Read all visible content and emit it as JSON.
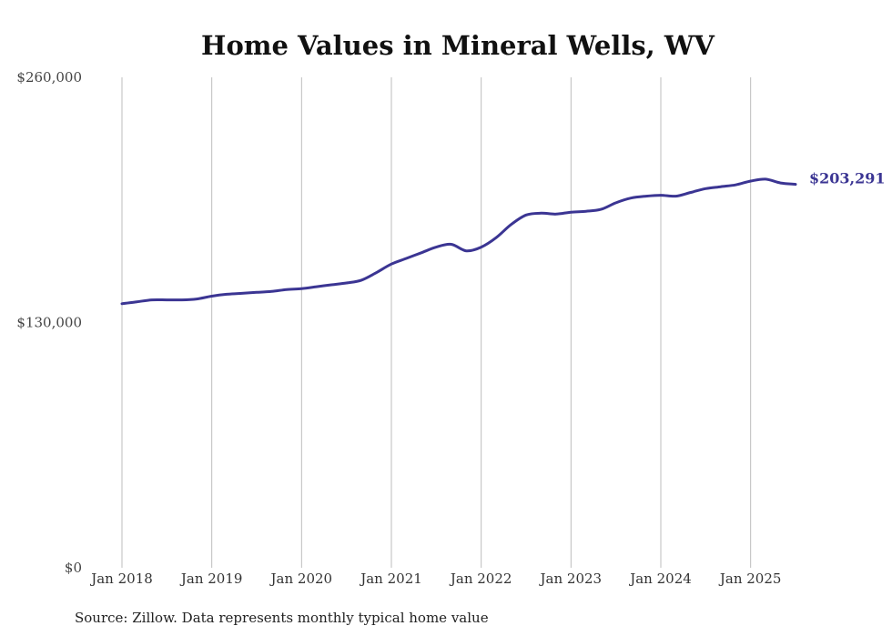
{
  "chart_data": {
    "type": "line",
    "title": "Home Values in Mineral Wells, WV",
    "xlabel": "",
    "ylabel": "",
    "ylim": [
      0,
      260000
    ],
    "y_ticks": [
      {
        "value": 0,
        "label": "$0"
      },
      {
        "value": 130000,
        "label": "$130,000"
      },
      {
        "value": 260000,
        "label": "$260,000"
      }
    ],
    "x_ticks": [
      "Jan 2018",
      "Jan 2019",
      "Jan 2020",
      "Jan 2021",
      "Jan 2022",
      "Jan 2023",
      "Jan 2024",
      "Jan 2025"
    ],
    "x_range": [
      "2018-01",
      "2025-07"
    ],
    "grid": "vertical lines at each January",
    "series": [
      {
        "color": "#3b3593",
        "points": [
          [
            "2018-01",
            140000
          ],
          [
            "2018-03",
            141000
          ],
          [
            "2018-05",
            142000
          ],
          [
            "2018-07",
            142000
          ],
          [
            "2018-09",
            142000
          ],
          [
            "2018-11",
            142500
          ],
          [
            "2019-01",
            144000
          ],
          [
            "2019-03",
            145000
          ],
          [
            "2019-05",
            145500
          ],
          [
            "2019-07",
            146000
          ],
          [
            "2019-09",
            146500
          ],
          [
            "2019-11",
            147500
          ],
          [
            "2020-01",
            148000
          ],
          [
            "2020-03",
            149000
          ],
          [
            "2020-05",
            150000
          ],
          [
            "2020-07",
            151000
          ],
          [
            "2020-09",
            152500
          ],
          [
            "2020-11",
            156500
          ],
          [
            "2021-01",
            161000
          ],
          [
            "2021-03",
            164000
          ],
          [
            "2021-05",
            167000
          ],
          [
            "2021-07",
            170000
          ],
          [
            "2021-09",
            171500
          ],
          [
            "2021-11",
            168000
          ],
          [
            "2022-01",
            170000
          ],
          [
            "2022-03",
            175000
          ],
          [
            "2022-05",
            182000
          ],
          [
            "2022-07",
            187000
          ],
          [
            "2022-09",
            188000
          ],
          [
            "2022-11",
            187500
          ],
          [
            "2023-01",
            188500
          ],
          [
            "2023-03",
            189000
          ],
          [
            "2023-05",
            190000
          ],
          [
            "2023-07",
            193500
          ],
          [
            "2023-09",
            196000
          ],
          [
            "2023-11",
            197000
          ],
          [
            "2024-01",
            197500
          ],
          [
            "2024-03",
            197000
          ],
          [
            "2024-05",
            199000
          ],
          [
            "2024-07",
            201000
          ],
          [
            "2024-09",
            202000
          ],
          [
            "2024-11",
            203000
          ],
          [
            "2025-01",
            205000
          ],
          [
            "2025-03",
            206000
          ],
          [
            "2025-05",
            204000
          ],
          [
            "2025-07",
            203291
          ]
        ]
      }
    ],
    "end_label": "$203,291",
    "source": "Source: Zillow. Data represents monthly typical home value"
  }
}
